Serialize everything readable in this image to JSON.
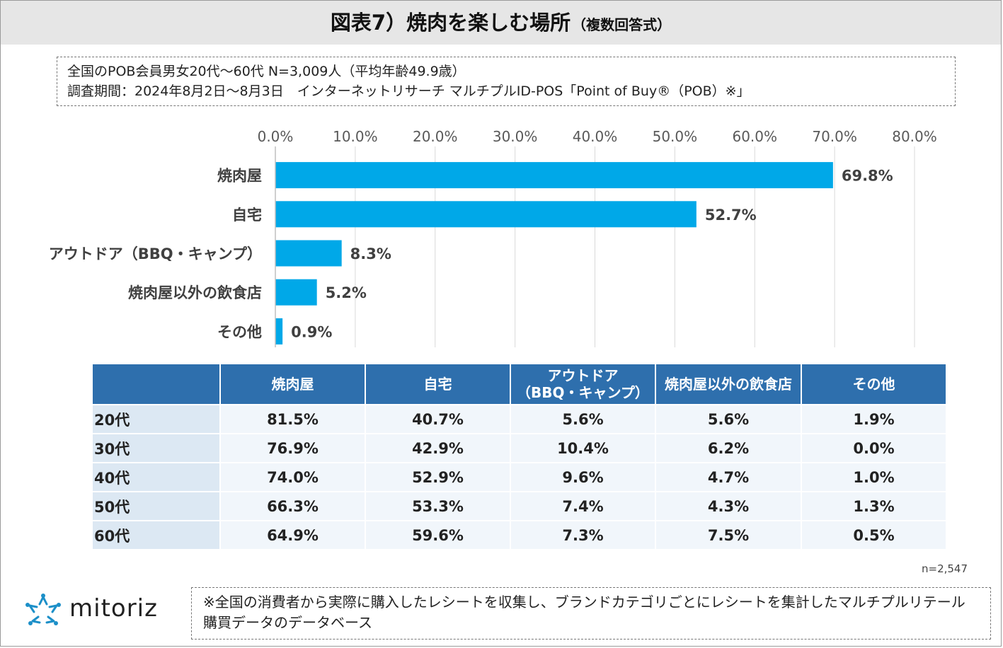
{
  "title": {
    "main": "図表7）焼肉を楽しむ場所",
    "sub": "（複数回答式）"
  },
  "survey": {
    "line1": "全国のPOB会員男女20代～60代 N=3,009人（平均年齢49.9歳）",
    "line2": "調査期間：2024年8月2日～8月3日　インターネットリサーチ マルチプルID-POS「Point of Buy®（POB）※」"
  },
  "chart_data": {
    "type": "bar",
    "orientation": "horizontal",
    "categories": [
      "焼肉屋",
      "自宅",
      "アウトドア（BBQ・キャンプ）",
      "焼肉屋以外の飲食店",
      "その他"
    ],
    "values": [
      69.8,
      52.7,
      8.3,
      5.2,
      0.9
    ],
    "value_labels": [
      "69.8%",
      "52.7%",
      "8.3%",
      "5.2%",
      "0.9%"
    ],
    "xlim": [
      0,
      80
    ],
    "ticks": [
      0,
      10,
      20,
      30,
      40,
      50,
      60,
      70,
      80
    ],
    "tick_labels": [
      "0.0%",
      "10.0%",
      "20.0%",
      "30.0%",
      "40.0%",
      "50.0%",
      "60.0%",
      "70.0%",
      "80.0%"
    ],
    "grid": true,
    "axis_position": "top",
    "bar_color": "#00a8e8"
  },
  "table": {
    "headers": [
      "焼肉屋",
      "自宅",
      "アウトドア\n（BBQ・キャンプ）",
      "焼肉屋以外の飲食店",
      "その他"
    ],
    "rows": [
      {
        "label": "20代",
        "values": [
          "81.5%",
          "40.7%",
          "5.6%",
          "5.6%",
          "1.9%"
        ]
      },
      {
        "label": "30代",
        "values": [
          "76.9%",
          "42.9%",
          "10.4%",
          "6.2%",
          "0.0%"
        ]
      },
      {
        "label": "40代",
        "values": [
          "74.0%",
          "52.9%",
          "9.6%",
          "4.7%",
          "1.0%"
        ]
      },
      {
        "label": "50代",
        "values": [
          "66.3%",
          "53.3%",
          "7.4%",
          "4.3%",
          "1.3%"
        ]
      },
      {
        "label": "60代",
        "values": [
          "64.9%",
          "59.6%",
          "7.3%",
          "7.5%",
          "0.5%"
        ]
      }
    ]
  },
  "sample_note": "n=2,547",
  "logo": {
    "text": "mitoriz"
  },
  "footnote": "※全国の消費者から実際に購入したレシートを収集し、ブランドカテゴリごとにレシートを集計したマルチプルリテール購買データのデータベース",
  "colors": {
    "header_bg": "#2e6fad",
    "row_label_bg": "#dce8f3",
    "bar": "#00a8e8",
    "logo_accent": "#1c8fc8"
  }
}
